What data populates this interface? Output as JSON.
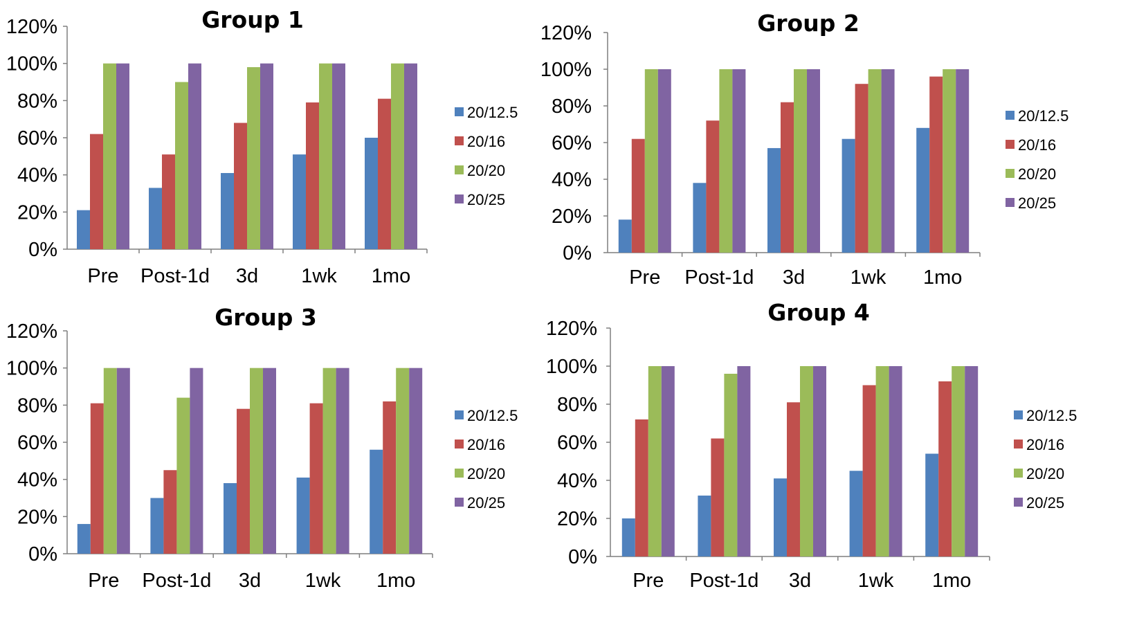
{
  "chart_data": [
    {
      "type": "bar",
      "title": "Group 1",
      "categories": [
        "Pre",
        "Post-1d",
        "3d",
        "1wk",
        "1mo"
      ],
      "ylim": [
        0,
        120
      ],
      "yticks": [
        "0%",
        "20%",
        "40%",
        "60%",
        "80%",
        "100%",
        "120%"
      ],
      "unit": "%",
      "grid": false,
      "legend_position": "right",
      "series": [
        {
          "name": "20/12.5",
          "color": "#4F81BD",
          "values": [
            21,
            33,
            41,
            51,
            60
          ]
        },
        {
          "name": "20/16",
          "color": "#C0504D",
          "values": [
            62,
            51,
            68,
            79,
            81
          ]
        },
        {
          "name": "20/20",
          "color": "#9BBB59",
          "values": [
            100,
            90,
            98,
            100,
            100
          ]
        },
        {
          "name": "20/25",
          "color": "#8064A2",
          "values": [
            100,
            100,
            100,
            100,
            100
          ]
        }
      ]
    },
    {
      "type": "bar",
      "title": "Group 2",
      "categories": [
        "Pre",
        "Post-1d",
        "3d",
        "1wk",
        "1mo"
      ],
      "ylim": [
        0,
        120
      ],
      "yticks": [
        "0%",
        "20%",
        "40%",
        "60%",
        "80%",
        "100%",
        "120%"
      ],
      "unit": "%",
      "grid": false,
      "legend_position": "right",
      "series": [
        {
          "name": "20/12.5",
          "color": "#4F81BD",
          "values": [
            18,
            38,
            57,
            62,
            68
          ]
        },
        {
          "name": "20/16",
          "color": "#C0504D",
          "values": [
            62,
            72,
            82,
            92,
            96
          ]
        },
        {
          "name": "20/20",
          "color": "#9BBB59",
          "values": [
            100,
            100,
            100,
            100,
            100
          ]
        },
        {
          "name": "20/25",
          "color": "#8064A2",
          "values": [
            100,
            100,
            100,
            100,
            100
          ]
        }
      ]
    },
    {
      "type": "bar",
      "title": "Group 3",
      "categories": [
        "Pre",
        "Post-1d",
        "3d",
        "1wk",
        "1mo"
      ],
      "ylim": [
        0,
        120
      ],
      "yticks": [
        "0%",
        "20%",
        "40%",
        "60%",
        "80%",
        "100%",
        "120%"
      ],
      "unit": "%",
      "grid": false,
      "legend_position": "right",
      "series": [
        {
          "name": "20/12.5",
          "color": "#4F81BD",
          "values": [
            16,
            30,
            38,
            41,
            56
          ]
        },
        {
          "name": "20/16",
          "color": "#C0504D",
          "values": [
            81,
            45,
            78,
            81,
            82
          ]
        },
        {
          "name": "20/20",
          "color": "#9BBB59",
          "values": [
            100,
            84,
            100,
            100,
            100
          ]
        },
        {
          "name": "20/25",
          "color": "#8064A2",
          "values": [
            100,
            100,
            100,
            100,
            100
          ]
        }
      ]
    },
    {
      "type": "bar",
      "title": "Group 4",
      "categories": [
        "Pre",
        "Post-1d",
        "3d",
        "1wk",
        "1mo"
      ],
      "ylim": [
        0,
        120
      ],
      "yticks": [
        "0%",
        "20%",
        "40%",
        "60%",
        "80%",
        "100%",
        "120%"
      ],
      "unit": "%",
      "grid": false,
      "legend_position": "right",
      "series": [
        {
          "name": "20/12.5",
          "color": "#4F81BD",
          "values": [
            20,
            32,
            41,
            45,
            54
          ]
        },
        {
          "name": "20/16",
          "color": "#C0504D",
          "values": [
            72,
            62,
            81,
            90,
            92
          ]
        },
        {
          "name": "20/20",
          "color": "#9BBB59",
          "values": [
            100,
            96,
            100,
            100,
            100
          ]
        },
        {
          "name": "20/25",
          "color": "#8064A2",
          "values": [
            100,
            100,
            100,
            100,
            100
          ]
        }
      ]
    }
  ]
}
